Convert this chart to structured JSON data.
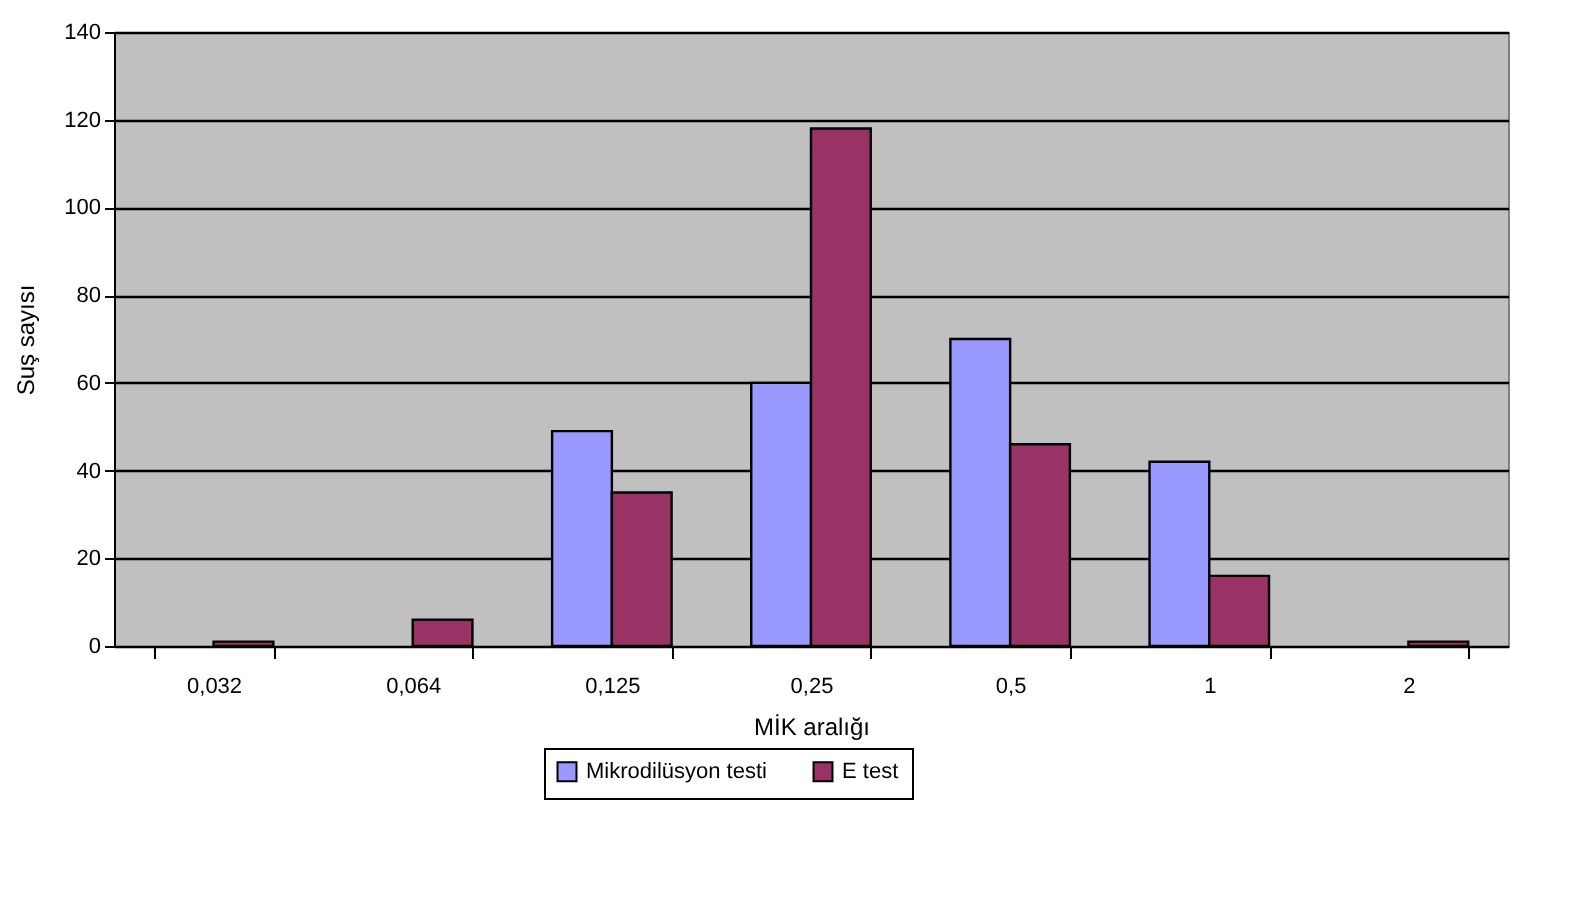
{
  "chart_data": {
    "type": "bar",
    "xlabel": "MİK aralığı",
    "ylabel": "Suş sayısı",
    "categories": [
      "0,032",
      "0,064",
      "0,125",
      "0,25",
      "0,5",
      "1",
      "2"
    ],
    "series": [
      {
        "name": "Mikrodilüsyon testi",
        "color": "#9999ff",
        "values": [
          0,
          0,
          49,
          60,
          70,
          42,
          0
        ]
      },
      {
        "name": "E test",
        "color": "#993366",
        "values": [
          1,
          6,
          35,
          118,
          46,
          16,
          1
        ]
      }
    ],
    "ylim": [
      0,
      140
    ],
    "yticks": [
      0,
      20,
      40,
      60,
      80,
      100,
      120,
      140
    ],
    "grid": "y",
    "legend": "bottom"
  }
}
